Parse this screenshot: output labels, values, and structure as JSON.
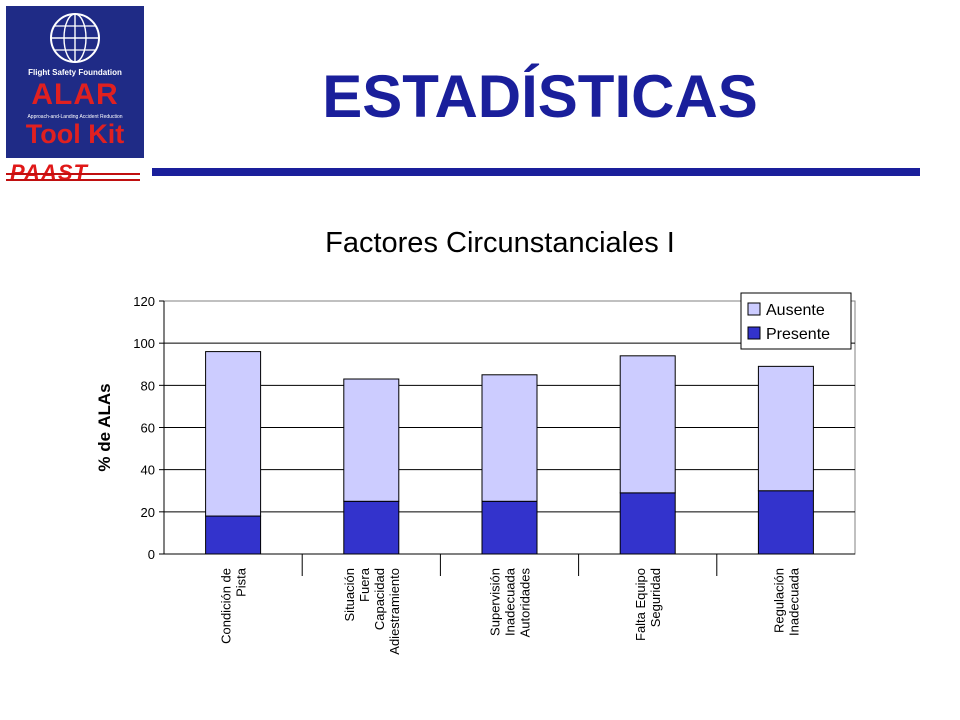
{
  "header": {
    "title": "ESTADÍSTICAS",
    "logo": {
      "org": "Flight Safety Foundation",
      "name": "ALAR",
      "tagline": "Approach-and-Landing Accident Reduction",
      "product": "Tool Kit",
      "program": "PAAST"
    },
    "rule_color": "#1a1f9b"
  },
  "chart_data": {
    "type": "bar",
    "stacked": true,
    "title": "Factores Circunstanciales I",
    "xlabel": "",
    "ylabel": "% de ALAs",
    "ylim": [
      0,
      120
    ],
    "yticks": [
      0,
      20,
      40,
      60,
      80,
      100,
      120
    ],
    "grid": true,
    "legend_position": "top-right",
    "categories": [
      [
        "Condición de",
        "Pista"
      ],
      [
        "Situación",
        "Fuera",
        "Capacidad",
        "Adiestramiento"
      ],
      [
        "Supervisión",
        "Inadecuada",
        "Autoridades"
      ],
      [
        "Falta Equipo",
        "Seguridad"
      ],
      [
        "Regulación",
        "Inadecuada"
      ]
    ],
    "series": [
      {
        "name": "Presente",
        "color": "#3333cc",
        "values": [
          18,
          25,
          25,
          29,
          30
        ]
      },
      {
        "name": "Ausente",
        "color": "#ccccff",
        "values": [
          78,
          58,
          60,
          65,
          59
        ]
      }
    ],
    "legend_order": [
      "Ausente",
      "Presente"
    ]
  }
}
